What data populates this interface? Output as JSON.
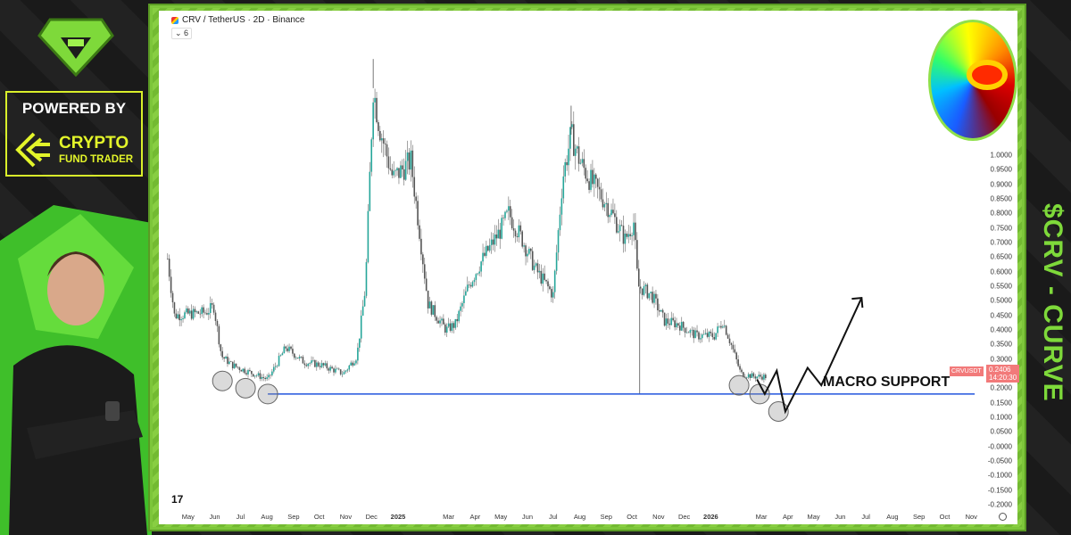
{
  "header": {
    "title": "CRV / TetherUS · 2D · Binance",
    "collapse_count": "6"
  },
  "branding": {
    "powered_by": "POWERED BY",
    "brand_line1": "CRYPTO",
    "brand_line2": "FUND TRADER",
    "side_title": "$CRV - CURVE",
    "accent": "#7ed93a",
    "brand_yellow": "#e3f52a"
  },
  "chart_data": {
    "type": "candlestick",
    "symbol": "CRV / TetherUS",
    "interval": "2D",
    "exchange": "Binance",
    "ylim": [
      -0.2,
      1.0
    ],
    "yticks": [
      "1.0000",
      "0.9500",
      "0.9000",
      "0.8500",
      "0.8000",
      "0.7500",
      "0.7000",
      "0.6500",
      "0.6000",
      "0.5500",
      "0.5000",
      "0.4500",
      "0.4000",
      "0.3500",
      "0.3000",
      "0.2000",
      "0.1500",
      "0.1000",
      "0.0500",
      "-0.0000",
      "-0.0500",
      "-0.1000",
      "-0.1500",
      "-0.2000"
    ],
    "xticks": [
      [
        "May",
        "2024-05-01"
      ],
      [
        "Jun",
        "2024-06-01"
      ],
      [
        "Jul",
        "2024-07-01"
      ],
      [
        "Aug",
        "2024-08-01"
      ],
      [
        "Sep",
        "2024-09-01"
      ],
      [
        "Oct",
        "2024-10-01"
      ],
      [
        "Nov",
        "2024-11-01"
      ],
      [
        "Dec",
        "2024-12-01"
      ],
      [
        "2025",
        "2025-01-01"
      ],
      [
        "Mar",
        "2025-03-01"
      ],
      [
        "Apr",
        "2025-04-01"
      ],
      [
        "May",
        "2025-05-01"
      ],
      [
        "Jun",
        "2025-06-01"
      ],
      [
        "Jul",
        "2025-07-01"
      ],
      [
        "Aug",
        "2025-08-01"
      ],
      [
        "Sep",
        "2025-09-01"
      ],
      [
        "Oct",
        "2025-10-01"
      ],
      [
        "Nov",
        "2025-11-01"
      ],
      [
        "Dec",
        "2025-12-01"
      ],
      [
        "2026",
        "2026-01-01"
      ],
      [
        "Mar",
        "2026-03-01"
      ],
      [
        "Apr",
        "2026-04-01"
      ],
      [
        "May",
        "2026-05-01"
      ],
      [
        "Jun",
        "2026-06-01"
      ],
      [
        "Jul",
        "2026-07-01"
      ],
      [
        "Aug",
        "2026-08-01"
      ],
      [
        "Sep",
        "2026-09-01"
      ],
      [
        "Oct",
        "2026-10-01"
      ],
      [
        "Nov",
        "2026-11-01"
      ]
    ],
    "price_path": [
      [
        "2024-04-07",
        0.645
      ],
      [
        "2024-04-15",
        0.45
      ],
      [
        "2024-05-21",
        0.46
      ],
      [
        "2024-05-31",
        0.48
      ],
      [
        "2024-06-09",
        0.31
      ],
      [
        "2024-06-21",
        0.28
      ],
      [
        "2024-07-07",
        0.26
      ],
      [
        "2024-08-02",
        0.23
      ],
      [
        "2024-08-23",
        0.34
      ],
      [
        "2024-09-13",
        0.29
      ],
      [
        "2024-10-03",
        0.28
      ],
      [
        "2024-10-29",
        0.25
      ],
      [
        "2024-11-14",
        0.31
      ],
      [
        "2024-11-24",
        0.55
      ],
      [
        "2024-12-03",
        1.23
      ],
      [
        "2024-12-10",
        1.1
      ],
      [
        "2024-12-26",
        0.92
      ],
      [
        "2025-01-16",
        0.98
      ],
      [
        "2025-01-26",
        0.74
      ],
      [
        "2025-02-05",
        0.49
      ],
      [
        "2025-02-26",
        0.4
      ],
      [
        "2025-03-09",
        0.42
      ],
      [
        "2025-03-24",
        0.55
      ],
      [
        "2025-04-09",
        0.64
      ],
      [
        "2025-04-30",
        0.74
      ],
      [
        "2025-05-10",
        0.8
      ],
      [
        "2025-05-26",
        0.71
      ],
      [
        "2025-06-10",
        0.61
      ],
      [
        "2025-07-01",
        0.52
      ],
      [
        "2025-07-12",
        0.92
      ],
      [
        "2025-07-22",
        1.07
      ],
      [
        "2025-08-01",
        0.98
      ],
      [
        "2025-08-12",
        0.92
      ],
      [
        "2025-09-02",
        0.83
      ],
      [
        "2025-09-23",
        0.71
      ],
      [
        "2025-10-03",
        0.77
      ],
      [
        "2025-10-08",
        0.55
      ],
      [
        "2025-10-24",
        0.52
      ],
      [
        "2025-11-08",
        0.43
      ],
      [
        "2025-11-24",
        0.42
      ],
      [
        "2025-12-15",
        0.38
      ],
      [
        "2026-01-05",
        0.38
      ],
      [
        "2026-01-15",
        0.43
      ],
      [
        "2026-01-26",
        0.34
      ],
      [
        "2026-02-05",
        0.25
      ],
      [
        "2026-02-21",
        0.24
      ],
      [
        "2026-03-06",
        0.24
      ]
    ],
    "notable_wicks": [
      [
        "2024-12-03",
        1.33
      ],
      [
        "2025-07-22",
        1.17
      ],
      [
        "2025-10-10",
        0.18
      ]
    ],
    "last_price": {
      "label": "CRVUSDT",
      "value": "0.2406",
      "countdown": "14:20:30",
      "color": "#f27a7a"
    },
    "annotations": {
      "support": {
        "label": "MACRO SUPPORT",
        "value": 0.18,
        "from": "2024-08-02",
        "to": "2026-11-05",
        "color": "#2255dd"
      },
      "circles": [
        [
          "2024-06-10",
          0.225
        ],
        [
          "2024-07-07",
          0.2
        ],
        [
          "2024-08-02",
          0.18
        ],
        [
          "2026-02-03",
          0.21
        ],
        [
          "2026-02-27",
          0.18
        ],
        [
          "2026-03-21",
          0.12
        ]
      ],
      "projection": [
        [
          "2026-02-24",
          0.23
        ],
        [
          "2026-03-05",
          0.18
        ],
        [
          "2026-03-19",
          0.26
        ],
        [
          "2026-03-29",
          0.12
        ],
        [
          "2026-04-24",
          0.27
        ],
        [
          "2026-05-10",
          0.21
        ],
        [
          "2026-06-26",
          0.51
        ]
      ]
    },
    "candle_up": "#26a69a",
    "candle_down": "#555555"
  }
}
